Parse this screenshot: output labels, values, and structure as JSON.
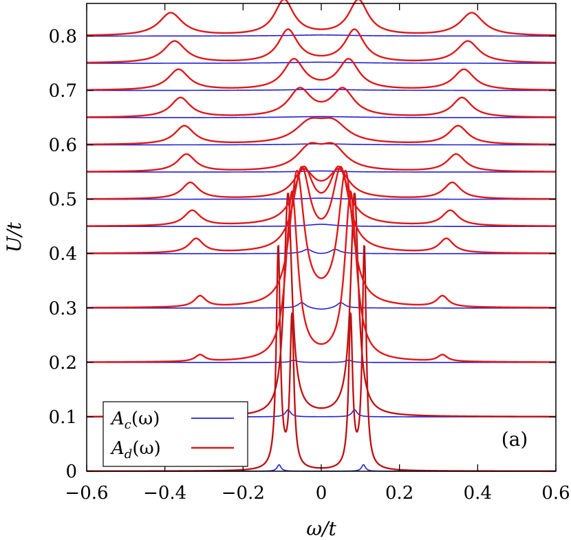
{
  "chart_data": {
    "type": "line",
    "xlabel": "ω/t",
    "ylabel": "U/t",
    "xlim": [
      -0.6,
      0.6
    ],
    "ylim": [
      0,
      0.86
    ],
    "x_ticks": [
      -0.6,
      -0.4,
      -0.2,
      0,
      0.2,
      0.4,
      0.6
    ],
    "x_tick_labels": [
      "−0.6",
      "−0.4",
      "−0.2",
      "0",
      "0.2",
      "0.4",
      "0.6"
    ],
    "y_ticks": [
      0,
      0.1,
      0.2,
      0.3,
      0.4,
      0.5,
      0.6,
      0.7,
      0.8
    ],
    "y_tick_labels": [
      "0",
      "0.1",
      "0.2",
      "0.3",
      "0.4",
      "0.5",
      "0.6",
      "0.7",
      "0.8"
    ],
    "panel_label": "(a)",
    "legend": {
      "placement": "bottom-left",
      "entries": [
        {
          "label": "A",
          "sub": "c",
          "suffix": "(ω)",
          "color": "#1f1fd6"
        },
        {
          "label": "A",
          "sub": "d",
          "suffix": "(ω)",
          "color": "#e01818"
        }
      ]
    },
    "series_colors": {
      "Ac": "#1f1fd6",
      "Ad": "#e01818",
      "Ad_dark": "#7a1010"
    },
    "baselines": [
      0,
      0.1,
      0.2,
      0.3,
      0.4,
      0.45,
      0.5,
      0.55,
      0.6,
      0.65,
      0.7,
      0.75,
      0.8
    ],
    "ad_curves": [
      {
        "U": 0.0,
        "peaks": [
          {
            "x": -0.11,
            "h": 0.41,
            "w": 0.006
          },
          {
            "x": -0.075,
            "h": 0.28,
            "w": 0.006
          },
          {
            "x": 0.075,
            "h": 0.28,
            "w": 0.006
          },
          {
            "x": 0.11,
            "h": 0.41,
            "w": 0.006
          }
        ],
        "fill": 0.0,
        "dark": true
      },
      {
        "U": 0.1,
        "peaks": [
          {
            "x": -0.085,
            "h": 0.41,
            "w": 0.012
          },
          {
            "x": 0.085,
            "h": 0.41,
            "w": 0.012
          }
        ],
        "fill": 0.0,
        "dark": true
      },
      {
        "U": 0.2,
        "peaks": [
          {
            "x": -0.31,
            "h": 0.012,
            "w": 0.015
          },
          {
            "x": -0.075,
            "h": 0.31,
            "w": 0.018
          },
          {
            "x": 0.075,
            "h": 0.31,
            "w": 0.018
          },
          {
            "x": 0.31,
            "h": 0.012,
            "w": 0.015
          }
        ],
        "fill": 0.0,
        "dark": false
      },
      {
        "U": 0.3,
        "peaks": [
          {
            "x": -0.31,
            "h": 0.02,
            "w": 0.018
          },
          {
            "x": -0.062,
            "h": 0.245,
            "w": 0.022
          },
          {
            "x": 0.062,
            "h": 0.245,
            "w": 0.022
          },
          {
            "x": 0.31,
            "h": 0.02,
            "w": 0.018
          }
        ],
        "fill": 0.0,
        "dark": false
      },
      {
        "U": 0.4,
        "peaks": [
          {
            "x": -0.32,
            "h": 0.026,
            "w": 0.022
          },
          {
            "x": -0.05,
            "h": 0.15,
            "w": 0.026
          },
          {
            "x": 0.05,
            "h": 0.15,
            "w": 0.026
          },
          {
            "x": 0.32,
            "h": 0.026,
            "w": 0.022
          }
        ],
        "fill": 0.0,
        "dark": false
      },
      {
        "U": 0.45,
        "peaks": [
          {
            "x": -0.33,
            "h": 0.028,
            "w": 0.025
          },
          {
            "x": -0.045,
            "h": 0.1,
            "w": 0.03
          },
          {
            "x": 0.045,
            "h": 0.1,
            "w": 0.03
          },
          {
            "x": 0.33,
            "h": 0.028,
            "w": 0.025
          }
        ],
        "fill": 0.0,
        "dark": false
      },
      {
        "U": 0.5,
        "peaks": [
          {
            "x": -0.335,
            "h": 0.03,
            "w": 0.026
          },
          {
            "x": -0.045,
            "h": 0.05,
            "w": 0.032
          },
          {
            "x": 0.045,
            "h": 0.05,
            "w": 0.032
          },
          {
            "x": 0.335,
            "h": 0.03,
            "w": 0.026
          }
        ],
        "fill": 0.0,
        "dark": false
      },
      {
        "U": 0.55,
        "peaks": [
          {
            "x": -0.345,
            "h": 0.032,
            "w": 0.028
          },
          {
            "x": -0.03,
            "h": 0.04,
            "w": 0.04
          },
          {
            "x": 0.03,
            "h": 0.04,
            "w": 0.04
          },
          {
            "x": 0.345,
            "h": 0.032,
            "w": 0.028
          }
        ],
        "fill": 0.0,
        "dark": false
      },
      {
        "U": 0.6,
        "peaks": [
          {
            "x": -0.35,
            "h": 0.034,
            "w": 0.03
          },
          {
            "x": -0.03,
            "h": 0.035,
            "w": 0.045
          },
          {
            "x": 0.03,
            "h": 0.035,
            "w": 0.045
          },
          {
            "x": 0.35,
            "h": 0.034,
            "w": 0.03
          }
        ],
        "fill": 0.0,
        "dark": false
      },
      {
        "U": 0.65,
        "peaks": [
          {
            "x": -0.36,
            "h": 0.036,
            "w": 0.03
          },
          {
            "x": -0.055,
            "h": 0.05,
            "w": 0.035
          },
          {
            "x": 0.055,
            "h": 0.05,
            "w": 0.035
          },
          {
            "x": 0.36,
            "h": 0.036,
            "w": 0.03
          }
        ],
        "fill": 0.0,
        "dark": false
      },
      {
        "U": 0.7,
        "peaks": [
          {
            "x": -0.365,
            "h": 0.038,
            "w": 0.032
          },
          {
            "x": -0.07,
            "h": 0.055,
            "w": 0.032
          },
          {
            "x": 0.07,
            "h": 0.055,
            "w": 0.032
          },
          {
            "x": 0.365,
            "h": 0.038,
            "w": 0.032
          }
        ],
        "fill": 0.0,
        "dark": false
      },
      {
        "U": 0.75,
        "peaks": [
          {
            "x": -0.375,
            "h": 0.04,
            "w": 0.034
          },
          {
            "x": -0.085,
            "h": 0.06,
            "w": 0.03
          },
          {
            "x": 0.085,
            "h": 0.06,
            "w": 0.03
          },
          {
            "x": 0.375,
            "h": 0.04,
            "w": 0.034
          }
        ],
        "fill": 0.0,
        "dark": false
      },
      {
        "U": 0.8,
        "peaks": [
          {
            "x": -0.385,
            "h": 0.042,
            "w": 0.036
          },
          {
            "x": -0.095,
            "h": 0.065,
            "w": 0.03
          },
          {
            "x": 0.095,
            "h": 0.065,
            "w": 0.03
          },
          {
            "x": 0.385,
            "h": 0.042,
            "w": 0.036
          }
        ],
        "fill": 0.0,
        "dark": false
      }
    ],
    "ac_curves": [
      {
        "U": 0.0,
        "peaks": [
          {
            "x": -0.108,
            "h": 0.012,
            "w": 0.006
          },
          {
            "x": 0.108,
            "h": 0.012,
            "w": 0.006
          }
        ],
        "dip": 0
      },
      {
        "U": 0.1,
        "peaks": [
          {
            "x": -0.085,
            "h": 0.013,
            "w": 0.008
          },
          {
            "x": 0.085,
            "h": 0.013,
            "w": 0.008
          }
        ],
        "dip": 0
      },
      {
        "U": 0.2,
        "peaks": [
          {
            "x": -0.07,
            "h": 0.004,
            "w": 0.01
          },
          {
            "x": 0.07,
            "h": 0.004,
            "w": 0.01
          }
        ],
        "dip": 0
      },
      {
        "U": 0.3,
        "peaks": [
          {
            "x": -0.05,
            "h": 0.01,
            "w": 0.012
          },
          {
            "x": 0.05,
            "h": 0.01,
            "w": 0.012
          }
        ],
        "dip": 0.003
      },
      {
        "U": 0.4,
        "peaks": [
          {
            "x": -0.035,
            "h": 0.008,
            "w": 0.015
          },
          {
            "x": 0.035,
            "h": 0.008,
            "w": 0.015
          }
        ],
        "dip": 0.002
      },
      {
        "U": 0.45,
        "peaks": [
          {
            "x": 0,
            "h": 0.004,
            "w": 0.04
          }
        ],
        "dip": 0
      },
      {
        "U": 0.5,
        "peaks": [
          {
            "x": 0,
            "h": 0.002,
            "w": 0.05
          }
        ],
        "dip": 0
      },
      {
        "U": 0.55,
        "peaks": [
          {
            "x": 0,
            "h": 0.002,
            "w": 0.06
          }
        ],
        "dip": 0
      },
      {
        "U": 0.6,
        "peaks": [
          {
            "x": 0,
            "h": 0.002,
            "w": 0.08
          }
        ],
        "dip": 0
      },
      {
        "U": 0.65,
        "peaks": [
          {
            "x": 0,
            "h": 0.002,
            "w": 0.1
          }
        ],
        "dip": 0
      },
      {
        "U": 0.7,
        "peaks": [
          {
            "x": 0,
            "h": 0.002,
            "w": 0.1
          }
        ],
        "dip": 0
      },
      {
        "U": 0.75,
        "peaks": [
          {
            "x": 0,
            "h": 0.002,
            "w": 0.1
          }
        ],
        "dip": 0
      },
      {
        "U": 0.8,
        "peaks": [
          {
            "x": 0,
            "h": 0.002,
            "w": 0.1
          }
        ],
        "dip": 0
      }
    ]
  }
}
